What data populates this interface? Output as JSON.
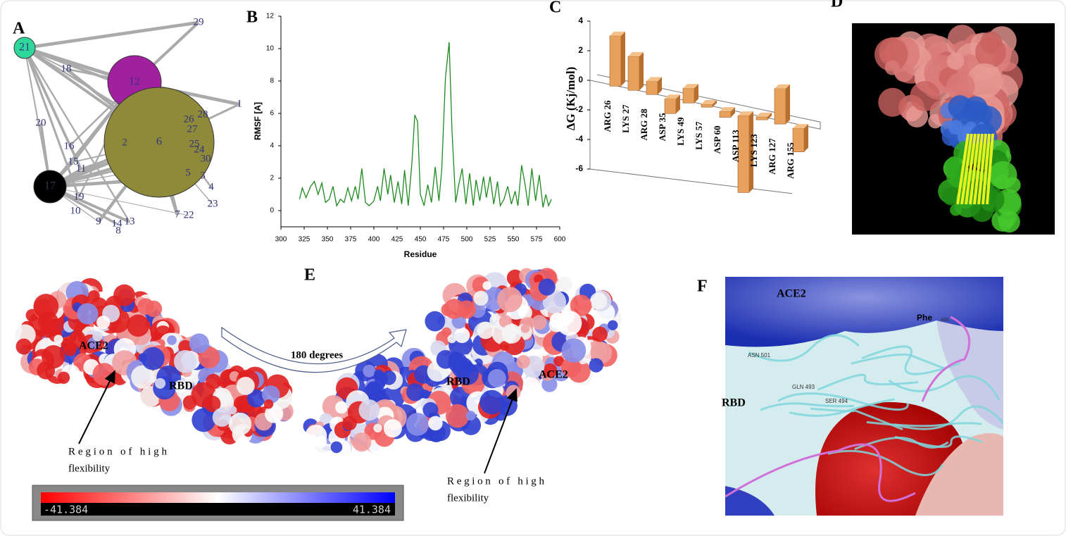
{
  "panels": [
    "A",
    "B",
    "C",
    "D",
    "E",
    "F"
  ],
  "network": {
    "nodes": [
      "21",
      "12",
      "17",
      "6",
      "29",
      "18",
      "1",
      "20",
      "28",
      "26",
      "27",
      "2",
      "25",
      "24",
      "30",
      "16",
      "15",
      "11",
      "5",
      "3",
      "4",
      "19",
      "23",
      "10",
      "7",
      "22",
      "9",
      "14",
      "13",
      "8"
    ]
  },
  "chart_data": [
    {
      "type": "line",
      "y_label": "RMSF [A]",
      "x_label": "Residue",
      "x": [
        320,
        323,
        327,
        332,
        336,
        340,
        344,
        348,
        352,
        356,
        360,
        364,
        368,
        372,
        376,
        380,
        383,
        387,
        391,
        395,
        400,
        404,
        407,
        411,
        415,
        418,
        422,
        426,
        430,
        433,
        437,
        441,
        444,
        447,
        450,
        454,
        458,
        462,
        466,
        470,
        473,
        477,
        481,
        484,
        488,
        491,
        495,
        499,
        503,
        507,
        510,
        514,
        518,
        521,
        525,
        529,
        533,
        536,
        540,
        544,
        548,
        552,
        555,
        559,
        563,
        566,
        570,
        574,
        578,
        582,
        585,
        588,
        591
      ],
      "series": [
        {
          "color": "#1e8a1e",
          "values": [
            0.7,
            1.4,
            0.8,
            1.5,
            1.8,
            1.0,
            1.7,
            0.5,
            0.7,
            1.5,
            0.3,
            0.7,
            0.5,
            1.4,
            0.6,
            1.5,
            0.7,
            2.6,
            0.5,
            0.3,
            0.6,
            1.5,
            0.6,
            2.6,
            1.0,
            2.2,
            0.5,
            1.8,
            0.4,
            2.5,
            0.3,
            3.0,
            5.9,
            5.5,
            1.0,
            0.3,
            1.6,
            0.5,
            2.7,
            0.6,
            2.5,
            8.2,
            10.4,
            5.0,
            0.5,
            1.5,
            2.6,
            0.4,
            2.3,
            0.3,
            1.9,
            0.6,
            2.1,
            0.8,
            2.1,
            0.4,
            1.8,
            0.3,
            0.7,
            1.5,
            0.4,
            1.2,
            0.3,
            2.8,
            1.5,
            0.3,
            2.6,
            0.6,
            2.2,
            0.2,
            1.0,
            0.3,
            0.7
          ]
        }
      ],
      "xlim": [
        300,
        600
      ],
      "xticks": [
        300,
        325,
        350,
        375,
        400,
        425,
        450,
        475,
        500,
        525,
        550,
        575,
        600
      ],
      "ylim": [
        -1,
        12
      ],
      "yticks": [
        0,
        2,
        4,
        6,
        8,
        10,
        12
      ]
    },
    {
      "type": "bar3d",
      "y_label": "ΔG (Kj/mol)",
      "categories": [
        "ARG 26",
        "LYS 27",
        "ARG 28",
        "ASP 35",
        "LYS 49",
        "LYS 57",
        "ASP 60",
        "ASP 113",
        "LYS 123",
        "ARG 127",
        "ARG 155"
      ],
      "values": [
        3.4,
        2.3,
        0.9,
        -1.0,
        1.0,
        0.2,
        -0.4,
        -5.2,
        0.2,
        2.4,
        -1.6
      ],
      "color": "#e8a15c",
      "ylim": [
        -6,
        4
      ],
      "yticks": [
        -6,
        -4,
        -2,
        0,
        2,
        4
      ]
    }
  ],
  "panel_e": {
    "left": {
      "labels": [
        "ACE2",
        "RBD"
      ],
      "annotation": [
        "Region of high",
        "flexibility"
      ]
    },
    "rotation": "180 degrees",
    "right": {
      "labels": [
        "RBD",
        "ACE2"
      ],
      "annotation": [
        "Region of high",
        "flexibility"
      ]
    },
    "colorbar": {
      "min_label": "-41.384",
      "max_label": "41.384"
    }
  },
  "panel_f": {
    "labels": [
      "ACE2",
      "RBD",
      "Phe",
      "486",
      "ASN 501",
      "GLN 493",
      "SER 494"
    ]
  }
}
